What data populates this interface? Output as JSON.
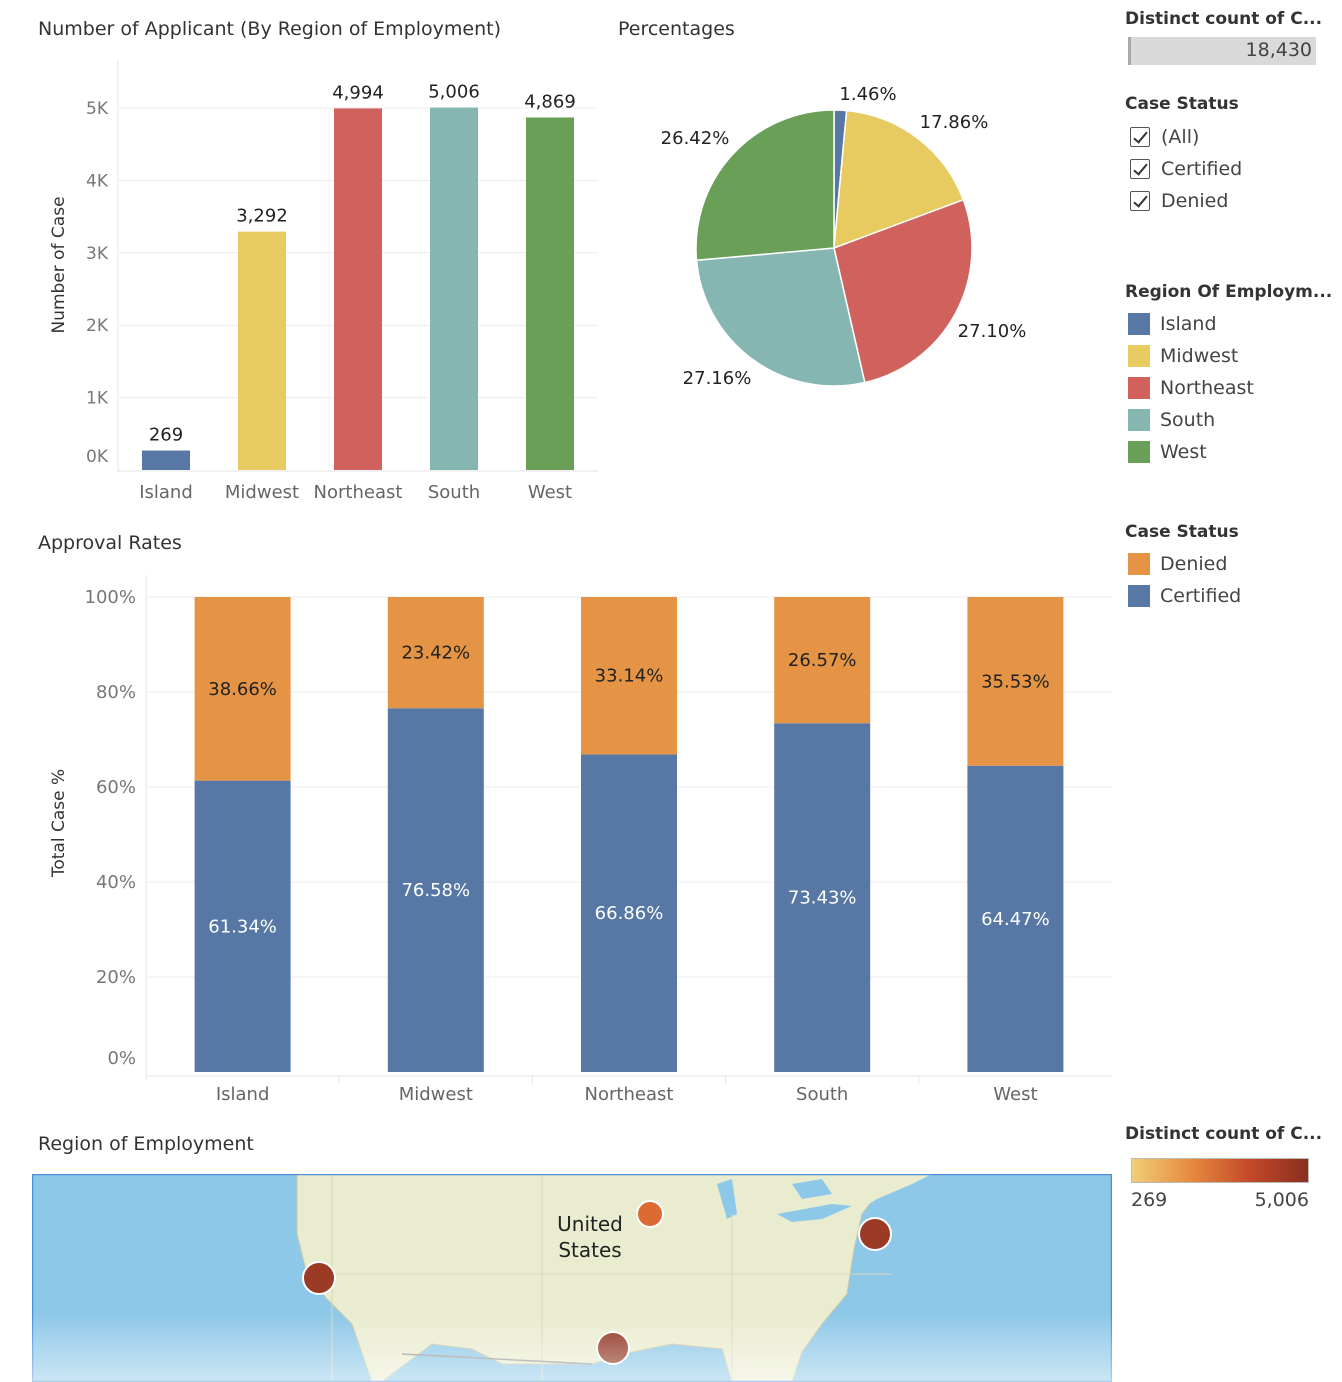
{
  "colors": {
    "Island": "#5778a4",
    "Midwest": "#e7ca60",
    "Northeast": "#d1615d",
    "South": "#85b6b2",
    "West": "#6a9f58",
    "Denied": "#e49444",
    "Certified": "#5778a4",
    "water": "#8ec8e8",
    "land": "#eaeccf"
  },
  "charts": {
    "bar_title": "Number of Applicant (By Region of Employment)",
    "pie_title": "Percentages",
    "approval_title": "Approval Rates",
    "map_title": "Region of Employment",
    "map_label_line1": "United",
    "map_label_line2": "States"
  },
  "sidebar": {
    "count_title": "Distinct count of C...",
    "count_value": "18,430",
    "status_filter_title": "Case Status",
    "status_filter_items": [
      "(All)",
      "Certified",
      "Denied"
    ],
    "region_legend_title": "Region Of Employm...",
    "region_legend_items": [
      "Island",
      "Midwest",
      "Northeast",
      "South",
      "West"
    ],
    "status_legend_title": "Case Status",
    "status_legend_items": [
      "Denied",
      "Certified"
    ],
    "gradient_title": "Distinct count of C...",
    "gradient_min": "269",
    "gradient_max": "5,006"
  },
  "chart_data": [
    {
      "type": "bar",
      "title": "Number of Applicant (By Region of Employment)",
      "categories": [
        "Island",
        "Midwest",
        "Northeast",
        "South",
        "West"
      ],
      "values": [
        269,
        3292,
        4994,
        5006,
        4869
      ],
      "data_labels": [
        "269",
        "3,292",
        "4,994",
        "5,006",
        "4,869"
      ],
      "ylabel": "Number of Case",
      "yticks": [
        "0K",
        "1K",
        "2K",
        "3K",
        "4K",
        "5K"
      ],
      "ylim": [
        0,
        5000
      ]
    },
    {
      "type": "pie",
      "title": "Percentages",
      "categories": [
        "Island",
        "Midwest",
        "Northeast",
        "South",
        "West"
      ],
      "values": [
        1.46,
        17.86,
        27.1,
        27.16,
        26.42
      ],
      "data_labels": [
        "1.46%",
        "17.86%",
        "27.10%",
        "27.16%",
        "26.42%"
      ]
    },
    {
      "type": "bar",
      "stacked": true,
      "title": "Approval Rates",
      "categories": [
        "Island",
        "Midwest",
        "Northeast",
        "South",
        "West"
      ],
      "ylabel": "Total Case %",
      "yticks": [
        "0%",
        "20%",
        "40%",
        "60%",
        "80%",
        "100%"
      ],
      "ylim": [
        0,
        100
      ],
      "series": [
        {
          "name": "Certified",
          "values": [
            61.34,
            76.58,
            66.86,
            73.43,
            64.47
          ],
          "data_labels": [
            "61.34%",
            "76.58%",
            "66.86%",
            "73.43%",
            "64.47%"
          ]
        },
        {
          "name": "Denied",
          "values": [
            38.66,
            23.42,
            33.14,
            26.57,
            35.53
          ],
          "data_labels": [
            "38.66%",
            "23.42%",
            "33.14%",
            "26.57%",
            "35.53%"
          ]
        }
      ]
    }
  ]
}
